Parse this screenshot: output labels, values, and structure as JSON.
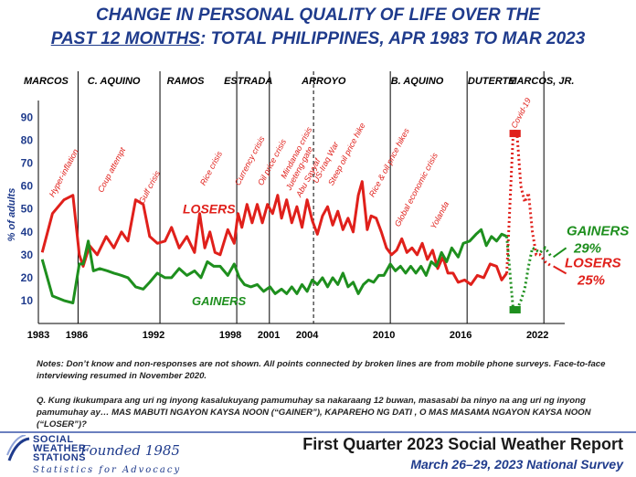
{
  "title": {
    "line1": "CHANGE IN PERSONAL QUALITY OF LIFE OVER THE",
    "line2_u": "PAST 12 MONTHS",
    "line2_rest": ": TOTAL PHILIPPINES, APR 1983 TO MAR 2023"
  },
  "chart_data": {
    "type": "line",
    "ylabel": "% of adults",
    "ylim": [
      0,
      95
    ],
    "yticks": [
      10,
      20,
      30,
      40,
      50,
      60,
      70,
      80,
      90
    ],
    "xlim": [
      1983,
      2023.7
    ],
    "xticks": [
      1983,
      1986,
      1992,
      1998,
      2001,
      2004,
      2010,
      2016,
      2022
    ],
    "presidents": [
      {
        "name": "MARCOS",
        "x": 1983.6
      },
      {
        "name": "C. AQUINO",
        "x": 1988.9
      },
      {
        "name": "RAMOS",
        "x": 1994.5
      },
      {
        "name": "ESTRADA",
        "x": 1999.4
      },
      {
        "name": "ARROYO",
        "x": 2005.3
      },
      {
        "name": "B. AQUINO",
        "x": 2012.6
      },
      {
        "name": "DUTERTE",
        "x": 2018.4
      },
      {
        "name": "MARCOS, JR.",
        "x": 2022.3
      }
    ],
    "term_lines": [
      1986.1,
      1992.5,
      1998.5,
      2001.05,
      2010.5,
      2016.5,
      2022.5
    ],
    "dashed_lines": [
      2004.5
    ],
    "events": [
      {
        "label": "Hyper-inflation",
        "x": 1984.2,
        "y": 55
      },
      {
        "label": "Coup attempt",
        "x": 1988.0,
        "y": 57
      },
      {
        "label": "Gulf crisis",
        "x": 1991.2,
        "y": 52
      },
      {
        "label": "Rice crisis",
        "x": 1996.0,
        "y": 60
      },
      {
        "label": "Currency crisis",
        "x": 1998.7,
        "y": 60
      },
      {
        "label": "Oil price crisis",
        "x": 2000.5,
        "y": 60
      },
      {
        "label": "Mindanao crisis",
        "x": 2002.3,
        "y": 63
      },
      {
        "label": "Jueteng-gate",
        "x": 2002.7,
        "y": 58
      },
      {
        "label": "Abu Sayyaf",
        "x": 2003.5,
        "y": 55
      },
      {
        "label": "US-Iraq War",
        "x": 2004.8,
        "y": 61
      },
      {
        "label": "Steep oil price hike",
        "x": 2006.0,
        "y": 60
      },
      {
        "label": "Rice & oil price hikes",
        "x": 2009.2,
        "y": 55
      },
      {
        "label": "Global economic crisis",
        "x": 2011.2,
        "y": 42
      },
      {
        "label": "Yolanda",
        "x": 2014.0,
        "y": 41
      },
      {
        "label": "Covid-19",
        "x": 2020.3,
        "y": 85
      }
    ],
    "series": [
      {
        "name": "LOSERS",
        "color": "#e0201b",
        "points": [
          [
            1983.3,
            31
          ],
          [
            1984.1,
            48
          ],
          [
            1985.0,
            54
          ],
          [
            1985.7,
            56
          ],
          [
            1986.2,
            30
          ],
          [
            1986.5,
            25
          ],
          [
            1987.0,
            34
          ],
          [
            1987.6,
            30
          ],
          [
            1988.3,
            38
          ],
          [
            1988.9,
            33
          ],
          [
            1989.5,
            40
          ],
          [
            1990.0,
            36
          ],
          [
            1990.6,
            54
          ],
          [
            1991.2,
            52
          ],
          [
            1991.7,
            38
          ],
          [
            1992.3,
            35
          ],
          [
            1992.9,
            36
          ],
          [
            1993.4,
            42
          ],
          [
            1994.0,
            33
          ],
          [
            1994.6,
            38
          ],
          [
            1995.2,
            31
          ],
          [
            1995.6,
            48
          ],
          [
            1996.0,
            33
          ],
          [
            1996.4,
            40
          ],
          [
            1996.8,
            31
          ],
          [
            1997.2,
            30
          ],
          [
            1997.8,
            41
          ],
          [
            1998.3,
            35
          ],
          [
            1998.6,
            48
          ],
          [
            1998.9,
            42
          ],
          [
            1999.3,
            52
          ],
          [
            1999.7,
            44
          ],
          [
            2000.1,
            52
          ],
          [
            2000.5,
            44
          ],
          [
            2000.9,
            52
          ],
          [
            2001.3,
            48
          ],
          [
            2001.7,
            56
          ],
          [
            2002.0,
            46
          ],
          [
            2002.4,
            54
          ],
          [
            2002.8,
            44
          ],
          [
            2003.2,
            51
          ],
          [
            2003.6,
            42
          ],
          [
            2004.0,
            54
          ],
          [
            2004.4,
            45
          ],
          [
            2004.8,
            39
          ],
          [
            2005.2,
            47
          ],
          [
            2005.6,
            51
          ],
          [
            2006.0,
            43
          ],
          [
            2006.4,
            49
          ],
          [
            2006.8,
            41
          ],
          [
            2007.2,
            46
          ],
          [
            2007.6,
            40
          ],
          [
            2008.0,
            56
          ],
          [
            2008.3,
            62
          ],
          [
            2008.7,
            41
          ],
          [
            2009.0,
            47
          ],
          [
            2009.4,
            46
          ],
          [
            2009.8,
            40
          ],
          [
            2010.2,
            33
          ],
          [
            2010.6,
            30
          ],
          [
            2011.0,
            32
          ],
          [
            2011.4,
            37
          ],
          [
            2011.8,
            31
          ],
          [
            2012.2,
            33
          ],
          [
            2012.6,
            30
          ],
          [
            2013.0,
            35
          ],
          [
            2013.4,
            28
          ],
          [
            2013.8,
            32
          ],
          [
            2014.2,
            24
          ],
          [
            2014.6,
            29
          ],
          [
            2015.0,
            22
          ],
          [
            2015.4,
            22
          ],
          [
            2015.8,
            18
          ],
          [
            2016.3,
            19
          ],
          [
            2016.8,
            17
          ],
          [
            2017.3,
            21
          ],
          [
            2017.8,
            20
          ],
          [
            2018.3,
            26
          ],
          [
            2018.8,
            25
          ],
          [
            2019.2,
            19
          ],
          [
            2019.6,
            22
          ]
        ],
        "dotted": [
          [
            2019.6,
            22
          ],
          [
            2020.1,
            83
          ],
          [
            2020.4,
            83
          ],
          [
            2020.7,
            60
          ],
          [
            2021.0,
            53
          ],
          [
            2021.3,
            57
          ],
          [
            2021.6,
            40
          ],
          [
            2021.9,
            30
          ],
          [
            2022.2,
            30
          ],
          [
            2022.6,
            27
          ],
          [
            2023.1,
            25
          ]
        ]
      },
      {
        "name": "GAINERS",
        "color": "#1e8f1e",
        "points": [
          [
            1983.3,
            28
          ],
          [
            1984.1,
            12
          ],
          [
            1985.0,
            10
          ],
          [
            1985.7,
            9
          ],
          [
            1986.2,
            26
          ],
          [
            1986.5,
            26
          ],
          [
            1986.9,
            36
          ],
          [
            1987.3,
            23
          ],
          [
            1987.8,
            24
          ],
          [
            1988.4,
            23
          ],
          [
            1988.9,
            22
          ],
          [
            1989.5,
            21
          ],
          [
            1990.0,
            20
          ],
          [
            1990.6,
            16
          ],
          [
            1991.2,
            15
          ],
          [
            1991.7,
            18
          ],
          [
            1992.3,
            22
          ],
          [
            1992.9,
            20
          ],
          [
            1993.4,
            20
          ],
          [
            1994.0,
            24
          ],
          [
            1994.6,
            21
          ],
          [
            1995.2,
            23
          ],
          [
            1995.7,
            20
          ],
          [
            1996.2,
            27
          ],
          [
            1996.7,
            25
          ],
          [
            1997.2,
            25
          ],
          [
            1997.8,
            21
          ],
          [
            1998.3,
            26
          ],
          [
            1998.7,
            20
          ],
          [
            1999.1,
            17
          ],
          [
            1999.6,
            16
          ],
          [
            2000.1,
            17
          ],
          [
            2000.6,
            14
          ],
          [
            2001.1,
            16
          ],
          [
            2001.5,
            13
          ],
          [
            2002.0,
            15
          ],
          [
            2002.4,
            13
          ],
          [
            2002.8,
            16
          ],
          [
            2003.2,
            13
          ],
          [
            2003.6,
            17
          ],
          [
            2004.0,
            14
          ],
          [
            2004.4,
            19
          ],
          [
            2004.8,
            17
          ],
          [
            2005.2,
            20
          ],
          [
            2005.6,
            16
          ],
          [
            2006.0,
            20
          ],
          [
            2006.4,
            17
          ],
          [
            2006.8,
            22
          ],
          [
            2007.2,
            16
          ],
          [
            2007.6,
            18
          ],
          [
            2008.0,
            13
          ],
          [
            2008.4,
            17
          ],
          [
            2008.8,
            19
          ],
          [
            2009.2,
            18
          ],
          [
            2009.6,
            21
          ],
          [
            2010.0,
            21
          ],
          [
            2010.5,
            26
          ],
          [
            2010.9,
            23
          ],
          [
            2011.3,
            25
          ],
          [
            2011.7,
            22
          ],
          [
            2012.1,
            25
          ],
          [
            2012.5,
            22
          ],
          [
            2012.9,
            25
          ],
          [
            2013.3,
            21
          ],
          [
            2013.7,
            27
          ],
          [
            2014.1,
            25
          ],
          [
            2014.5,
            31
          ],
          [
            2014.9,
            27
          ],
          [
            2015.3,
            33
          ],
          [
            2015.8,
            29
          ],
          [
            2016.2,
            35
          ],
          [
            2016.7,
            36
          ],
          [
            2017.2,
            39
          ],
          [
            2017.6,
            41
          ],
          [
            2018.0,
            34
          ],
          [
            2018.4,
            38
          ],
          [
            2018.8,
            36
          ],
          [
            2019.2,
            39
          ],
          [
            2019.6,
            38
          ]
        ],
        "dotted": [
          [
            2019.6,
            38
          ],
          [
            2020.1,
            6
          ],
          [
            2020.4,
            6
          ],
          [
            2020.7,
            10
          ],
          [
            2021.0,
            15
          ],
          [
            2021.3,
            25
          ],
          [
            2021.6,
            33
          ],
          [
            2021.9,
            32
          ],
          [
            2022.2,
            31
          ],
          [
            2022.6,
            33
          ],
          [
            2023.1,
            29
          ]
        ]
      }
    ],
    "labels": {
      "losers_mid": "LOSERS",
      "gainers_mid": "GAINERS",
      "gainers_end": "GAINERS",
      "gainers_end_val": "29%",
      "losers_end": "LOSERS",
      "losers_end_val": "25%"
    }
  },
  "notes": "Notes: Don’t know and non-responses are not shown. All points connected by broken lines are from mobile phone surveys. Face-to-face interviewing resumed in November 2020.",
  "question": "Q. Kung ikukumpara ang uri ng inyong kasalukuyang pamumuhay sa nakaraang 12 buwan, masasabi ba ninyo na ang uri ng inyong pamumuhay ay… MAS MABUTI NGAYON KAYSA NOON (“GAINER”), KAPAREHO NG DATI , O MAS MASAMA NGAYON KAYSA NOON (“LOSER”)?",
  "footer": {
    "logo_line1": "SOCIAL",
    "logo_line2": "WEATHER",
    "logo_line3": "STATIONS",
    "founded": "Founded 1985",
    "tagline": "Statistics for Advocacy",
    "report_title": "First Quarter 2023 Social Weather Report",
    "report_sub": "March 26–29, 2023 National Survey"
  }
}
